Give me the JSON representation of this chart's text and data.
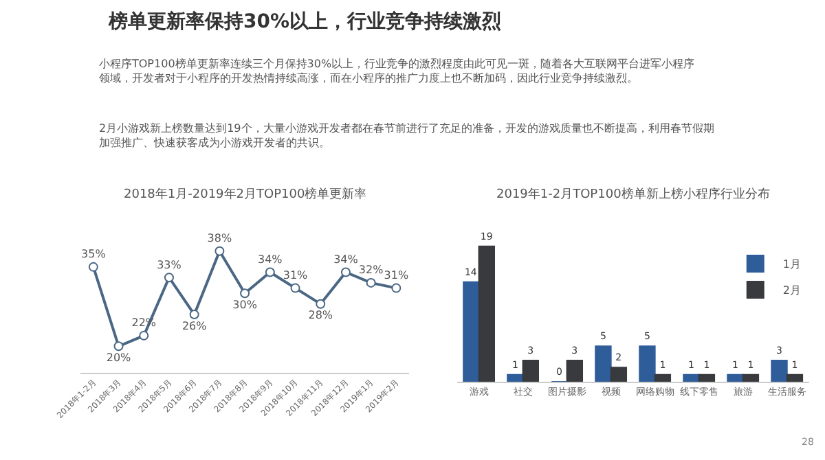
{
  "chart_data": [
    {
      "type": "other",
      "title": "榜单更新率保持30%以上，行业竞争持续激烈",
      "annotations": [
        "小程序TOP100榜单更新率连续三个月保持30%以上，行业竞争的激烈程度由此可见一斑，随着各大互联网平台进军小程序领域，开发者对于小程序的开发热情持续高涨，而在小程序的推广力度上也不断加码，因此行业竞争持续激烈。",
        "2月小游戏新上榜数量达到19个，大量小游戏开发者都在春节前进行了充足的准备，开发的游戏质量也不断提高，利用春节假期加强推广、快速获客成为小游戏开发者的共识。",
        "28"
      ]
    },
    {
      "type": "line",
      "title": "2018年1月-2019年2月TOP100榜单更新率",
      "categories": [
        "2018年1-2月",
        "2018年3月",
        "2018年4月",
        "2018年5月",
        "2018年6月",
        "2018年7月",
        "2018年8月",
        "2018年9月",
        "2018年10月",
        "2018年11月",
        "2018年12月",
        "2019年1月",
        "2019年2月"
      ],
      "series": [
        {
          "color": "#4a6784",
          "values": [
            35,
            20,
            22,
            33,
            26,
            38,
            30,
            34,
            31,
            28,
            34,
            32,
            31
          ],
          "value_labels": [
            "35%",
            "20%",
            "22%",
            "33%",
            "26%",
            "38%",
            "30%",
            "34%",
            "31%",
            "28%",
            "34%",
            "32%",
            "31%"
          ]
        }
      ],
      "marker": "circle",
      "line_style": "solid",
      "tick_labels": "x"
    },
    {
      "type": "bar",
      "title": "2019年1-2月TOP100榜单新上榜小程序行业分布",
      "categories": [
        "游戏",
        "社交",
        "图片摄影",
        "视频",
        "网络购物",
        "线下零售",
        "旅游",
        "生活服务"
      ],
      "series": [
        {
          "name": "1月",
          "color": "#2f5d9a",
          "values": [
            14,
            1,
            0,
            5,
            5,
            1,
            1,
            3
          ]
        },
        {
          "name": "2月",
          "color": "#383a3e",
          "values": [
            19,
            3,
            3,
            2,
            1,
            1,
            1,
            1
          ]
        }
      ],
      "data_labels": true,
      "tick_labels": "x",
      "legend": "top right"
    }
  ]
}
